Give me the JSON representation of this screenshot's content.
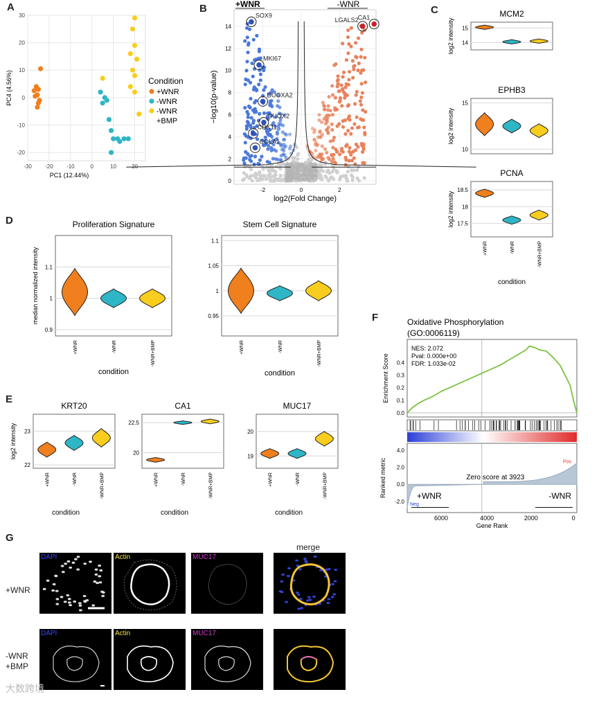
{
  "panels": {
    "A": "A",
    "B": "B",
    "C": "C",
    "D": "D",
    "E": "E",
    "F": "F",
    "G": "G"
  },
  "colors": {
    "wnr_plus": "#f07f1e",
    "wnr_minus": "#2eb6c6",
    "wnr_bmp": "#f8cd1e",
    "down": "#4a78d8",
    "up": "#e8825c"
  },
  "chart_data": [
    {
      "id": "A",
      "type": "scatter",
      "xlabel": "PC1 (12.44%)",
      "ylabel": "PC4 (4.56%)",
      "xlim": [
        -30,
        25
      ],
      "ylim": [
        -23,
        30
      ],
      "xticks": [
        -30,
        -20,
        -10,
        0,
        10,
        20
      ],
      "yticks": [
        -20,
        -10,
        0,
        10,
        20,
        30
      ],
      "legend_title": "Condition",
      "legend_labels": [
        "+WNR",
        "-WNR",
        "-WNR",
        "+BMP"
      ],
      "series": [
        {
          "name": "+WNR",
          "x": [
            -24,
            -26,
            -25,
            -27,
            -25.5,
            -26.5,
            -24.5,
            -25,
            -25.5
          ],
          "y": [
            10.5,
            4,
            3,
            2.5,
            1,
            0.5,
            -1,
            -2,
            -3.5
          ]
        },
        {
          "name": "-WNR",
          "x": [
            4,
            6,
            7,
            5,
            8,
            9,
            10,
            12,
            13,
            15,
            17,
            9
          ],
          "y": [
            2,
            0,
            -1,
            -2,
            -8,
            -12,
            -15,
            -15,
            -16,
            -15,
            -15,
            -20
          ]
        },
        {
          "name": "-WNR +BMP",
          "x": [
            20,
            19,
            20,
            18,
            21,
            19,
            20,
            5,
            18,
            20,
            22
          ],
          "y": [
            29,
            25,
            19,
            16,
            14,
            10,
            8,
            7,
            4,
            2,
            -6
          ]
        }
      ]
    },
    {
      "id": "B",
      "type": "scatter",
      "xlabel": "log2(Fold Change)",
      "ylabel": "−log10(p-value)",
      "xlim": [
        -3.5,
        3.9
      ],
      "ylim": [
        -0.3,
        15.5
      ],
      "xticks": [
        -2,
        0,
        2
      ],
      "yticks": [
        0,
        2,
        4,
        6,
        8,
        10,
        12,
        14
      ],
      "header_left": "+WNR",
      "header_right": "-WNR",
      "labels": [
        {
          "text": "SOX9",
          "x": -2.6,
          "y": 14.4
        },
        {
          "text": "MKI67",
          "x": -2.2,
          "y": 10.5
        },
        {
          "text": "DUOXA2",
          "x": -2.0,
          "y": 7.2
        },
        {
          "text": "DUOX2",
          "x": -1.95,
          "y": 5.3
        },
        {
          "text": "CDK11",
          "x": -2.5,
          "y": 4.3
        },
        {
          "text": "COLA1",
          "x": -2.4,
          "y": 3.0
        },
        {
          "text": "LGALS2",
          "x": 3.2,
          "y": 14.0
        },
        {
          "text": "CA1",
          "x": 3.8,
          "y": 14.2
        }
      ]
    },
    {
      "id": "C",
      "type": "violin",
      "ylabel": "log2 intensity",
      "categories": [
        "+WNR",
        "-WNR",
        "-WNR+BMP"
      ],
      "xlabel": "condition",
      "subplots": [
        {
          "title": "MCM2",
          "ylim": [
            13.5,
            15.4
          ],
          "yticks": [
            14,
            15
          ],
          "center": [
            15.05,
            14.05,
            14.1
          ],
          "spread": [
            0.3,
            0.3,
            0.3
          ]
        },
        {
          "title": "EPHB3",
          "ylim": [
            9.5,
            15.5
          ],
          "yticks": [
            10,
            15
          ],
          "center": [
            12.7,
            12.5,
            12.0
          ],
          "spread": [
            2.5,
            1.5,
            1.5
          ]
        },
        {
          "title": "PCNA",
          "ylim": [
            17.1,
            18.75
          ],
          "yticks": [
            17.5,
            18.0,
            18.5
          ],
          "center": [
            18.4,
            17.6,
            17.75
          ],
          "spread": [
            0.25,
            0.25,
            0.3
          ]
        }
      ]
    },
    {
      "id": "D",
      "type": "violin",
      "ylabel": "median normalized intensity",
      "xlabel": "condition",
      "categories": [
        "+WNR",
        "-WNR",
        "-WNR+BMP"
      ],
      "subplots": [
        {
          "title": "Proliferation Signature",
          "ylim": [
            0.88,
            1.2
          ],
          "yticks": [
            0.9,
            1.0,
            1.1
          ],
          "center": [
            1.02,
            1.0,
            1.0
          ],
          "spread": [
            0.15,
            0.06,
            0.06
          ]
        },
        {
          "title": "Stem Cell Signature",
          "ylim": [
            0.91,
            1.11
          ],
          "yticks": [
            0.95,
            1.0,
            1.05,
            1.1
          ],
          "center": [
            1.0,
            0.995,
            1.0
          ],
          "spread": [
            0.09,
            0.03,
            0.04
          ]
        }
      ]
    },
    {
      "id": "E",
      "type": "violin",
      "ylabel": "log2 intensity",
      "xlabel": "condition",
      "categories": [
        "+WNR",
        "-WNR",
        "-WNR+BMP"
      ],
      "subplots": [
        {
          "title": "KRT20",
          "ylim": [
            21.9,
            23.5
          ],
          "yticks": [
            22,
            23
          ],
          "center": [
            22.45,
            22.65,
            22.8
          ],
          "spread": [
            0.45,
            0.45,
            0.55
          ]
        },
        {
          "title": "CA1",
          "ylim": [
            18.7,
            23.2
          ],
          "yticks": [
            20.0,
            22.5
          ],
          "center": [
            19.4,
            22.5,
            22.6
          ],
          "spread": [
            0.4,
            0.3,
            0.4
          ]
        },
        {
          "title": "MUC17",
          "ylim": [
            18.5,
            20.7
          ],
          "yticks": [
            19,
            20
          ],
          "center": [
            19.1,
            19.1,
            19.7
          ],
          "spread": [
            0.4,
            0.4,
            0.6
          ]
        }
      ]
    },
    {
      "id": "F",
      "type": "line",
      "title": "Oxidative Phosphorylation",
      "subtitle": "(GO:0006119)",
      "ylabel": "Enrichment Score",
      "xlabel": "Gene Rank",
      "stats": [
        "NES: 2.072",
        "Pval: 0.000e+00",
        "FDR: 1.033e-02"
      ],
      "yticks": [
        "0.0",
        "0.1",
        "0.2",
        "0.3",
        "0.4"
      ],
      "xticks": [
        "6000",
        "4000",
        "2000",
        "0"
      ],
      "x": [
        0,
        0.03,
        0.06,
        0.1,
        0.15,
        0.2,
        0.25,
        0.3,
        0.35,
        0.4,
        0.45,
        0.5,
        0.55,
        0.6,
        0.65,
        0.7,
        0.72,
        0.75,
        0.78,
        0.82,
        0.86,
        0.9,
        0.93,
        0.96,
        0.98,
        1.0
      ],
      "y": [
        0,
        0.04,
        0.07,
        0.1,
        0.13,
        0.17,
        0.2,
        0.23,
        0.26,
        0.29,
        0.32,
        0.35,
        0.38,
        0.42,
        0.46,
        0.5,
        0.53,
        0.52,
        0.5,
        0.49,
        0.44,
        0.38,
        0.3,
        0.22,
        0.1,
        0
      ],
      "ranked_ylabel": "Ranked metric",
      "ranked_yticks": [
        "4.0",
        "2.0",
        "0.0",
        "-2.0"
      ],
      "zero_label": "Zero score at 3923",
      "pos_label": "Pos",
      "neg_label": "Neg",
      "arrow_left": "+WNR",
      "arrow_right": "-WNR"
    }
  ],
  "panel_g": {
    "row1": "+WNR",
    "row2_line1": "-WNR",
    "row2_line2": "+BMP",
    "cols": [
      "DAPI",
      "Actin",
      "MUC17"
    ],
    "merge": "merge",
    "watermark": "大数跨境"
  }
}
